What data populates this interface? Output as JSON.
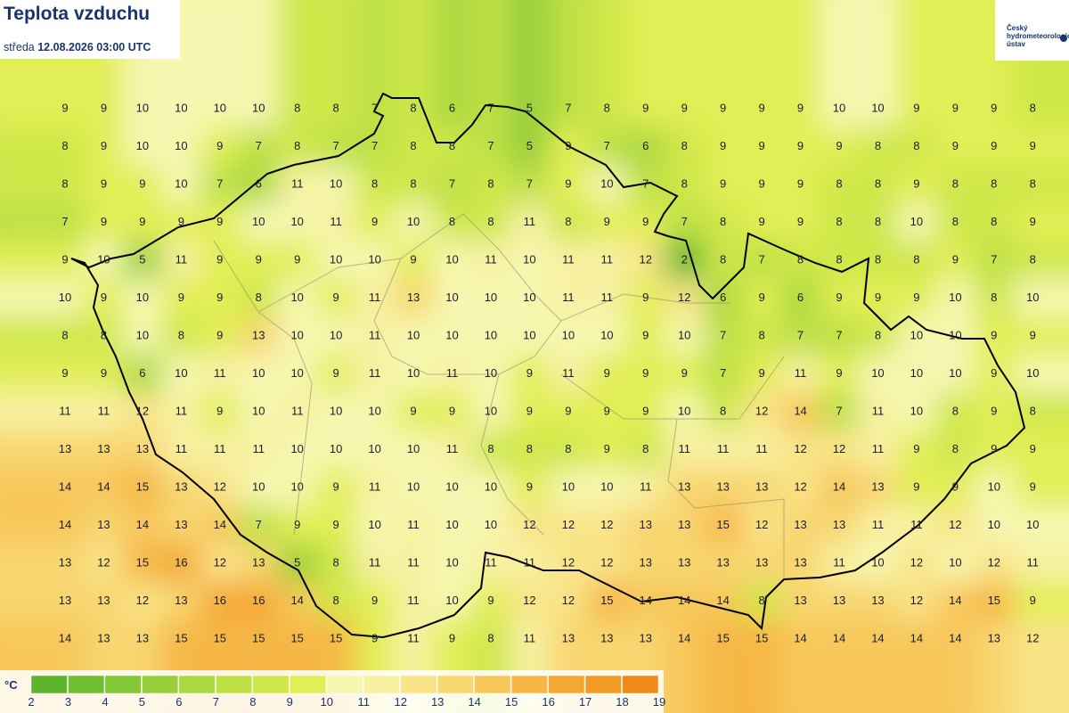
{
  "header": {
    "title": "Teplota vzduchu",
    "weekday": "středa",
    "datetime": "12.08.2026 03:00 UTC"
  },
  "logo": {
    "lines": [
      "Český",
      "hydrometeorologický",
      "ústav"
    ]
  },
  "grid": {
    "rows": [
      [
        9,
        9,
        10,
        10,
        10,
        10,
        8,
        8,
        7,
        8,
        6,
        7,
        5,
        7,
        8,
        9,
        9,
        9,
        9,
        9,
        10,
        10,
        9,
        9,
        9,
        8
      ],
      [
        8,
        9,
        10,
        10,
        9,
        7,
        8,
        7,
        7,
        8,
        8,
        7,
        5,
        9,
        7,
        6,
        8,
        9,
        9,
        9,
        9,
        8,
        8,
        9,
        9,
        9
      ],
      [
        8,
        9,
        9,
        10,
        7,
        6,
        11,
        10,
        8,
        8,
        7,
        8,
        7,
        9,
        10,
        7,
        8,
        9,
        9,
        9,
        8,
        8,
        9,
        8,
        8,
        8
      ],
      [
        7,
        9,
        9,
        9,
        9,
        10,
        10,
        11,
        9,
        10,
        8,
        8,
        11,
        8,
        9,
        9,
        7,
        8,
        9,
        9,
        8,
        8,
        10,
        8,
        8,
        9
      ],
      [
        9,
        10,
        5,
        11,
        9,
        9,
        9,
        10,
        10,
        9,
        10,
        11,
        10,
        11,
        11,
        12,
        2,
        8,
        7,
        8,
        8,
        8,
        8,
        9,
        7,
        8
      ],
      [
        10,
        9,
        10,
        9,
        9,
        8,
        10,
        9,
        11,
        13,
        10,
        10,
        10,
        11,
        11,
        9,
        12,
        6,
        9,
        6,
        9,
        9,
        9,
        10,
        8,
        10
      ],
      [
        8,
        8,
        10,
        8,
        9,
        13,
        10,
        10,
        11,
        10,
        10,
        10,
        10,
        10,
        10,
        9,
        10,
        7,
        8,
        7,
        7,
        8,
        10,
        10,
        9,
        9
      ],
      [
        9,
        9,
        6,
        10,
        11,
        10,
        10,
        9,
        11,
        10,
        11,
        10,
        9,
        11,
        9,
        9,
        9,
        7,
        9,
        11,
        9,
        10,
        10,
        10,
        9,
        10
      ],
      [
        11,
        11,
        12,
        11,
        9,
        10,
        11,
        10,
        10,
        9,
        9,
        10,
        9,
        9,
        9,
        9,
        10,
        8,
        12,
        14,
        7,
        11,
        10,
        8,
        9,
        8
      ],
      [
        13,
        13,
        13,
        11,
        11,
        11,
        10,
        10,
        10,
        10,
        11,
        8,
        8,
        8,
        9,
        8,
        11,
        11,
        11,
        12,
        12,
        11,
        9,
        8,
        9,
        9
      ],
      [
        14,
        14,
        15,
        13,
        12,
        10,
        10,
        9,
        11,
        10,
        10,
        10,
        9,
        10,
        10,
        11,
        13,
        13,
        13,
        12,
        14,
        13,
        9,
        9,
        10,
        9
      ],
      [
        14,
        13,
        14,
        13,
        14,
        7,
        9,
        9,
        10,
        11,
        10,
        10,
        12,
        12,
        12,
        13,
        13,
        15,
        12,
        13,
        13,
        11,
        11,
        12,
        10,
        10
      ],
      [
        13,
        12,
        15,
        16,
        12,
        13,
        5,
        8,
        11,
        11,
        10,
        11,
        11,
        12,
        12,
        13,
        13,
        13,
        13,
        13,
        11,
        10,
        12,
        10,
        12,
        11
      ],
      [
        13,
        13,
        12,
        13,
        16,
        16,
        14,
        8,
        9,
        11,
        10,
        9,
        12,
        12,
        15,
        14,
        14,
        14,
        8,
        13,
        13,
        13,
        12,
        14,
        15,
        9
      ],
      [
        14,
        13,
        13,
        15,
        15,
        15,
        15,
        15,
        9,
        11,
        9,
        8,
        11,
        13,
        13,
        13,
        14,
        15,
        15,
        14,
        14,
        14,
        14,
        14,
        13,
        12
      ]
    ]
  },
  "legend": {
    "unit": "°C",
    "labels": [
      2,
      3,
      4,
      5,
      6,
      7,
      8,
      9,
      10,
      11,
      12,
      13,
      14,
      15,
      16,
      17,
      18,
      19
    ],
    "colors": [
      "#5cb52c",
      "#6fbd31",
      "#83c636",
      "#97cf3b",
      "#aad83f",
      "#bde044",
      "#cfe74a",
      "#e2ee55",
      "#f6f7b0",
      "#f8f1a2",
      "#f9e488",
      "#f8d670",
      "#f7c75a",
      "#f6b746",
      "#f4a834",
      "#f29a26",
      "#ef8b1a"
    ]
  }
}
